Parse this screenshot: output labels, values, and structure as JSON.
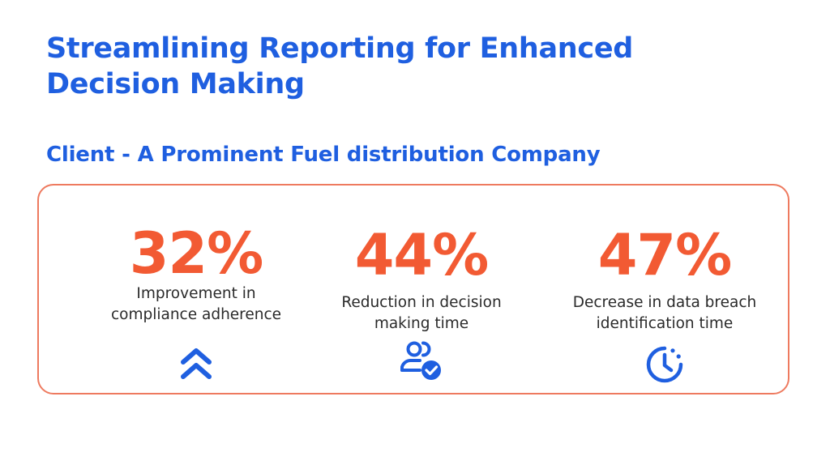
{
  "header": {
    "title": "Streamlining Reporting for Enhanced Decision Making",
    "client": "Client - A Prominent Fuel distribution Company"
  },
  "stats": [
    {
      "value": "32%",
      "label_lines": [
        "Improvement in",
        "compliance adherence"
      ],
      "icon": "double-chevron-up-icon"
    },
    {
      "value": "44%",
      "label_lines": [
        "Reduction in decision",
        "making time"
      ],
      "icon": "users-check-icon"
    },
    {
      "value": "47%",
      "label_lines": [
        "Decrease in data breach",
        "identification time"
      ],
      "icon": "clock-icon"
    }
  ],
  "colors": {
    "heading": "#1f5fe0",
    "accent": "#f25a33",
    "card_border": "#ee7a5f",
    "icon": "#1f5fe0",
    "body_text": "#2a2a2a"
  }
}
